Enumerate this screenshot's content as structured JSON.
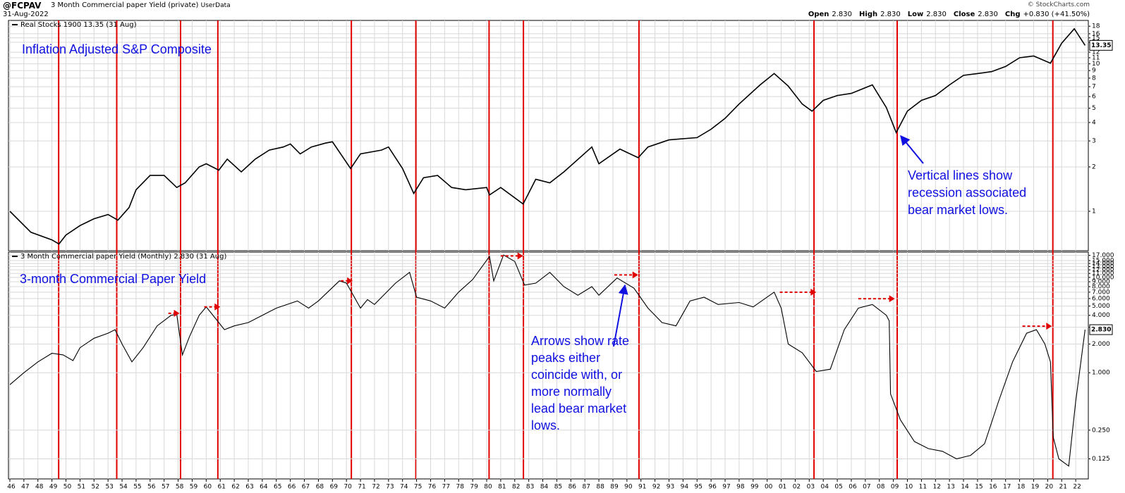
{
  "header": {
    "symbol": "@FCPAV",
    "name": "3 Month Commercial paper Yield (private)",
    "source": "UserData",
    "date": "31-Aug-2022",
    "copyright": "© StockCharts.com",
    "quote": [
      [
        "Open",
        "2.830"
      ],
      [
        "High",
        "2.830"
      ],
      [
        "Low",
        "2.830"
      ],
      [
        "Close",
        "2.830"
      ],
      [
        "Chg",
        "+0.830 (+41.50%)"
      ]
    ]
  },
  "chart_data": [
    {
      "type": "line",
      "legend": "Real Stocks 1900 13.35 (31 Aug)",
      "annotation": "Inflation Adjusted S&P Composite",
      "note_lines": [
        "Vertical lines show",
        "recession associated",
        "bear market lows."
      ],
      "log_scale": true,
      "grid": true,
      "color": "#000000",
      "ylim": [
        0.54,
        19.7
      ],
      "yticks": [
        1,
        2,
        3,
        4,
        5,
        6,
        7,
        8,
        9,
        10,
        11,
        12,
        14,
        15,
        16,
        18
      ],
      "last_value": 13.35,
      "recession_lines": [
        1949.48,
        1953.62,
        1958.17,
        1960.83,
        1970.35,
        1974.95,
        1980.17,
        1982.62,
        1990.86,
        2003.34,
        2009.27,
        2020.37
      ],
      "recession_color": "#e00000",
      "x": [
        1946,
        1947.5,
        1949,
        1949.5,
        1950,
        1951,
        1952,
        1953,
        1953.7,
        1954.5,
        1955,
        1956,
        1957,
        1957.9,
        1958.5,
        1959.5,
        1960,
        1960.9,
        1961.5,
        1962.5,
        1963.5,
        1964.5,
        1965.5,
        1966,
        1966.7,
        1967.5,
        1968.5,
        1969,
        1970.3,
        1971,
        1972.5,
        1973,
        1974,
        1974.8,
        1975.5,
        1976.5,
        1977.5,
        1978.5,
        1980,
        1980.2,
        1981,
        1982.6,
        1983.5,
        1984.5,
        1985.5,
        1987.5,
        1988,
        1989.5,
        1990.8,
        1991.5,
        1993,
        1995,
        1996,
        1997,
        1998,
        1999.5,
        2000.5,
        2001.5,
        2002.5,
        2003.2,
        2004,
        2005,
        2006,
        2007.5,
        2008.5,
        2009.2,
        2010,
        2011,
        2012,
        2013,
        2014,
        2015,
        2016,
        2017,
        2018,
        2019,
        2020.2,
        2021,
        2021.9,
        2022.67
      ],
      "values": [
        1.0,
        0.72,
        0.64,
        0.6,
        0.69,
        0.8,
        0.89,
        0.95,
        0.87,
        1.06,
        1.4,
        1.75,
        1.75,
        1.45,
        1.56,
        2.0,
        2.1,
        1.9,
        2.26,
        1.85,
        2.26,
        2.6,
        2.73,
        2.86,
        2.45,
        2.73,
        2.9,
        2.96,
        1.95,
        2.45,
        2.6,
        2.73,
        1.95,
        1.32,
        1.69,
        1.75,
        1.45,
        1.4,
        1.45,
        1.29,
        1.45,
        1.12,
        1.65,
        1.56,
        1.85,
        2.73,
        2.1,
        2.64,
        2.31,
        2.73,
        3.05,
        3.16,
        3.6,
        4.27,
        5.34,
        7.2,
        8.6,
        7.07,
        5.34,
        4.78,
        5.65,
        6.1,
        6.3,
        7.2,
        5.05,
        3.42,
        4.78,
        5.65,
        6.1,
        7.2,
        8.35,
        8.6,
        8.85,
        9.6,
        11.0,
        11.3,
        10.1,
        13.8,
        17.3,
        13.35
      ]
    },
    {
      "type": "line",
      "legend": "3 Month Commercial paper Yield (Monthly) 2.830 (31 Aug)",
      "annotation": "3-month Commercial Paper Yield",
      "note_lines": [
        "Arrows show rate",
        "peaks either",
        "coincide with, or",
        "more normally",
        "lead bear market",
        "lows."
      ],
      "log_scale": true,
      "grid": true,
      "color": "#000000",
      "ylim": [
        0.077,
        18.4
      ],
      "yticks": [
        {
          "value": 17,
          "label": "17.000"
        },
        {
          "value": 15,
          "label": "15.000"
        },
        {
          "value": 14,
          "label": "14.000"
        },
        {
          "value": 13,
          "label": "13.000"
        },
        {
          "value": 12,
          "label": "12.000"
        },
        {
          "value": 11,
          "label": "11.000"
        },
        {
          "value": 10,
          "label": "10.000"
        },
        {
          "value": 9,
          "label": "9.000"
        },
        {
          "value": 8,
          "label": "8.000"
        },
        {
          "value": 7,
          "label": "7.000"
        },
        {
          "value": 6,
          "label": "6.000"
        },
        {
          "value": 5,
          "label": "5.000"
        },
        {
          "value": 4,
          "label": "4.000"
        },
        {
          "value": 3,
          "label": "3.000"
        },
        {
          "value": 2,
          "label": "2.000"
        },
        {
          "value": 1,
          "label": "1.000"
        },
        {
          "value": 0.25,
          "label": "0.250"
        },
        {
          "value": 0.125,
          "label": "0.125"
        }
      ],
      "last_value": {
        "value": 2.83,
        "label": "2.830"
      },
      "arrow_color": "#e00000",
      "peak_arrows": [
        {
          "x": [
            1957.3,
            1958.1
          ],
          "value": 4.2
        },
        {
          "x": [
            1959.86,
            1961.0
          ],
          "value": 4.9
        },
        {
          "x": [
            1969.6,
            1970.45
          ],
          "value": 9.2
        },
        {
          "x": [
            1981.0,
            1982.6
          ],
          "value": 16.8
        },
        {
          "x": [
            1989.1,
            1990.8
          ],
          "value": 10.6
        },
        {
          "x": [
            2000.9,
            2003.5
          ],
          "value": 7.0
        },
        {
          "x": [
            2006.5,
            2009.1
          ],
          "value": 5.97
        },
        {
          "x": [
            2018.2,
            2020.3
          ],
          "value": 3.08
        }
      ],
      "xlim": [
        1945.9,
        2022.9
      ],
      "xticks": [
        {
          "value": 1946,
          "label": "46"
        },
        {
          "value": 1947,
          "label": "47"
        },
        {
          "value": 1948,
          "label": "48"
        },
        {
          "value": 1949,
          "label": "49"
        },
        {
          "value": 1950,
          "label": "50"
        },
        {
          "value": 1951,
          "label": "51"
        },
        {
          "value": 1952,
          "label": "52"
        },
        {
          "value": 1953,
          "label": "53"
        },
        {
          "value": 1954,
          "label": "54"
        },
        {
          "value": 1955,
          "label": "55"
        },
        {
          "value": 1956,
          "label": "56"
        },
        {
          "value": 1957,
          "label": "57"
        },
        {
          "value": 1958,
          "label": "58"
        },
        {
          "value": 1959,
          "label": "59"
        },
        {
          "value": 1960,
          "label": "60"
        },
        {
          "value": 1961,
          "label": "61"
        },
        {
          "value": 1962,
          "label": "62"
        },
        {
          "value": 1963,
          "label": "63"
        },
        {
          "value": 1964,
          "label": "64"
        },
        {
          "value": 1965,
          "label": "65"
        },
        {
          "value": 1966,
          "label": "66"
        },
        {
          "value": 1967,
          "label": "67"
        },
        {
          "value": 1968,
          "label": "68"
        },
        {
          "value": 1969,
          "label": "69"
        },
        {
          "value": 1970,
          "label": "70"
        },
        {
          "value": 1971,
          "label": "71"
        },
        {
          "value": 1972,
          "label": "72"
        },
        {
          "value": 1973,
          "label": "73"
        },
        {
          "value": 1974,
          "label": "74"
        },
        {
          "value": 1975,
          "label": "75"
        },
        {
          "value": 1976,
          "label": "76"
        },
        {
          "value": 1977,
          "label": "77"
        },
        {
          "value": 1978,
          "label": "78"
        },
        {
          "value": 1979,
          "label": "79"
        },
        {
          "value": 1980,
          "label": "80"
        },
        {
          "value": 1981,
          "label": "81"
        },
        {
          "value": 1982,
          "label": "82"
        },
        {
          "value": 1983,
          "label": "83"
        },
        {
          "value": 1984,
          "label": "84"
        },
        {
          "value": 1985,
          "label": "85"
        },
        {
          "value": 1986,
          "label": "86"
        },
        {
          "value": 1987,
          "label": "87"
        },
        {
          "value": 1988,
          "label": "88"
        },
        {
          "value": 1989,
          "label": "89"
        },
        {
          "value": 1990,
          "label": "90"
        },
        {
          "value": 1991,
          "label": "91"
        },
        {
          "value": 1992,
          "label": "92"
        },
        {
          "value": 1993,
          "label": "93"
        },
        {
          "value": 1994,
          "label": "94"
        },
        {
          "value": 1995,
          "label": "95"
        },
        {
          "value": 1996,
          "label": "96"
        },
        {
          "value": 1997,
          "label": "97"
        },
        {
          "value": 1998,
          "label": "98"
        },
        {
          "value": 1999,
          "label": "99"
        },
        {
          "value": 2000,
          "label": "00"
        },
        {
          "value": 2001,
          "label": "01"
        },
        {
          "value": 2002,
          "label": "02"
        },
        {
          "value": 2003,
          "label": "03"
        },
        {
          "value": 2004,
          "label": "04"
        },
        {
          "value": 2005,
          "label": "05"
        },
        {
          "value": 2006,
          "label": "06"
        },
        {
          "value": 2007,
          "label": "07"
        },
        {
          "value": 2008,
          "label": "08"
        },
        {
          "value": 2009,
          "label": "09"
        },
        {
          "value": 2010,
          "label": "10"
        },
        {
          "value": 2011,
          "label": "11"
        },
        {
          "value": 2012,
          "label": "12"
        },
        {
          "value": 2013,
          "label": "13"
        },
        {
          "value": 2014,
          "label": "14"
        },
        {
          "value": 2015,
          "label": "15"
        },
        {
          "value": 2016,
          "label": "16"
        },
        {
          "value": 2017,
          "label": "17"
        },
        {
          "value": 2018,
          "label": "18"
        },
        {
          "value": 2019,
          "label": "19"
        },
        {
          "value": 2020,
          "label": "20"
        },
        {
          "value": 2021,
          "label": "21"
        },
        {
          "value": 2022,
          "label": "22"
        }
      ],
      "x": [
        1946,
        1947,
        1948,
        1949,
        1949.8,
        1950.5,
        1951,
        1952,
        1953,
        1953.5,
        1954,
        1954.7,
        1955.5,
        1956.5,
        1957.5,
        1957.9,
        1958.3,
        1958.8,
        1959.5,
        1960,
        1960.8,
        1961.3,
        1962,
        1963,
        1964,
        1965,
        1966.5,
        1967.3,
        1968,
        1969.5,
        1970,
        1971,
        1971.5,
        1972,
        1973.5,
        1974.5,
        1975,
        1976,
        1977,
        1978,
        1979,
        1980.2,
        1980.5,
        1981.2,
        1982,
        1982.7,
        1983.5,
        1984.5,
        1985.5,
        1986.5,
        1987.5,
        1988,
        1989.3,
        1990.5,
        1991.5,
        1992.5,
        1993.5,
        1994.5,
        1995.5,
        1996.5,
        1998,
        1999,
        2000.5,
        2001,
        2001.5,
        2002.5,
        2003.5,
        2004.5,
        2005.5,
        2006.5,
        2007.5,
        2008.5,
        2008.7,
        2008.8,
        2009.5,
        2010.5,
        2011.5,
        2012.5,
        2013.5,
        2014.5,
        2015.5,
        2016.5,
        2017.5,
        2018.5,
        2019.2,
        2019.8,
        2020.2,
        2020.4,
        2020.8,
        2021.5,
        2022,
        2022.67
      ],
      "values": [
        0.75,
        1.0,
        1.3,
        1.6,
        1.54,
        1.34,
        1.83,
        2.3,
        2.6,
        2.83,
        2.0,
        1.3,
        1.83,
        3.1,
        4.0,
        4.1,
        1.54,
        2.38,
        4.0,
        4.9,
        3.5,
        2.83,
        3.1,
        3.36,
        4.0,
        4.76,
        5.66,
        4.76,
        5.66,
        9.2,
        8.7,
        4.76,
        5.85,
        5.2,
        8.7,
        11.3,
        6.2,
        5.66,
        4.76,
        7.0,
        9.5,
        16.6,
        9.2,
        17.2,
        14.7,
        8.3,
        8.7,
        11.3,
        8.0,
        6.5,
        8.0,
        6.5,
        9.85,
        7.7,
        4.76,
        3.36,
        3.1,
        5.66,
        6.2,
        5.2,
        5.45,
        4.9,
        7.0,
        4.76,
        2.0,
        1.62,
        1.03,
        1.09,
        2.83,
        4.76,
        5.2,
        4.0,
        3.5,
        0.6,
        0.32,
        0.19,
        0.16,
        0.15,
        0.125,
        0.136,
        0.18,
        0.5,
        1.3,
        2.6,
        2.83,
        2.0,
        1.3,
        0.21,
        0.125,
        0.105,
        0.5,
        2.83
      ]
    }
  ]
}
